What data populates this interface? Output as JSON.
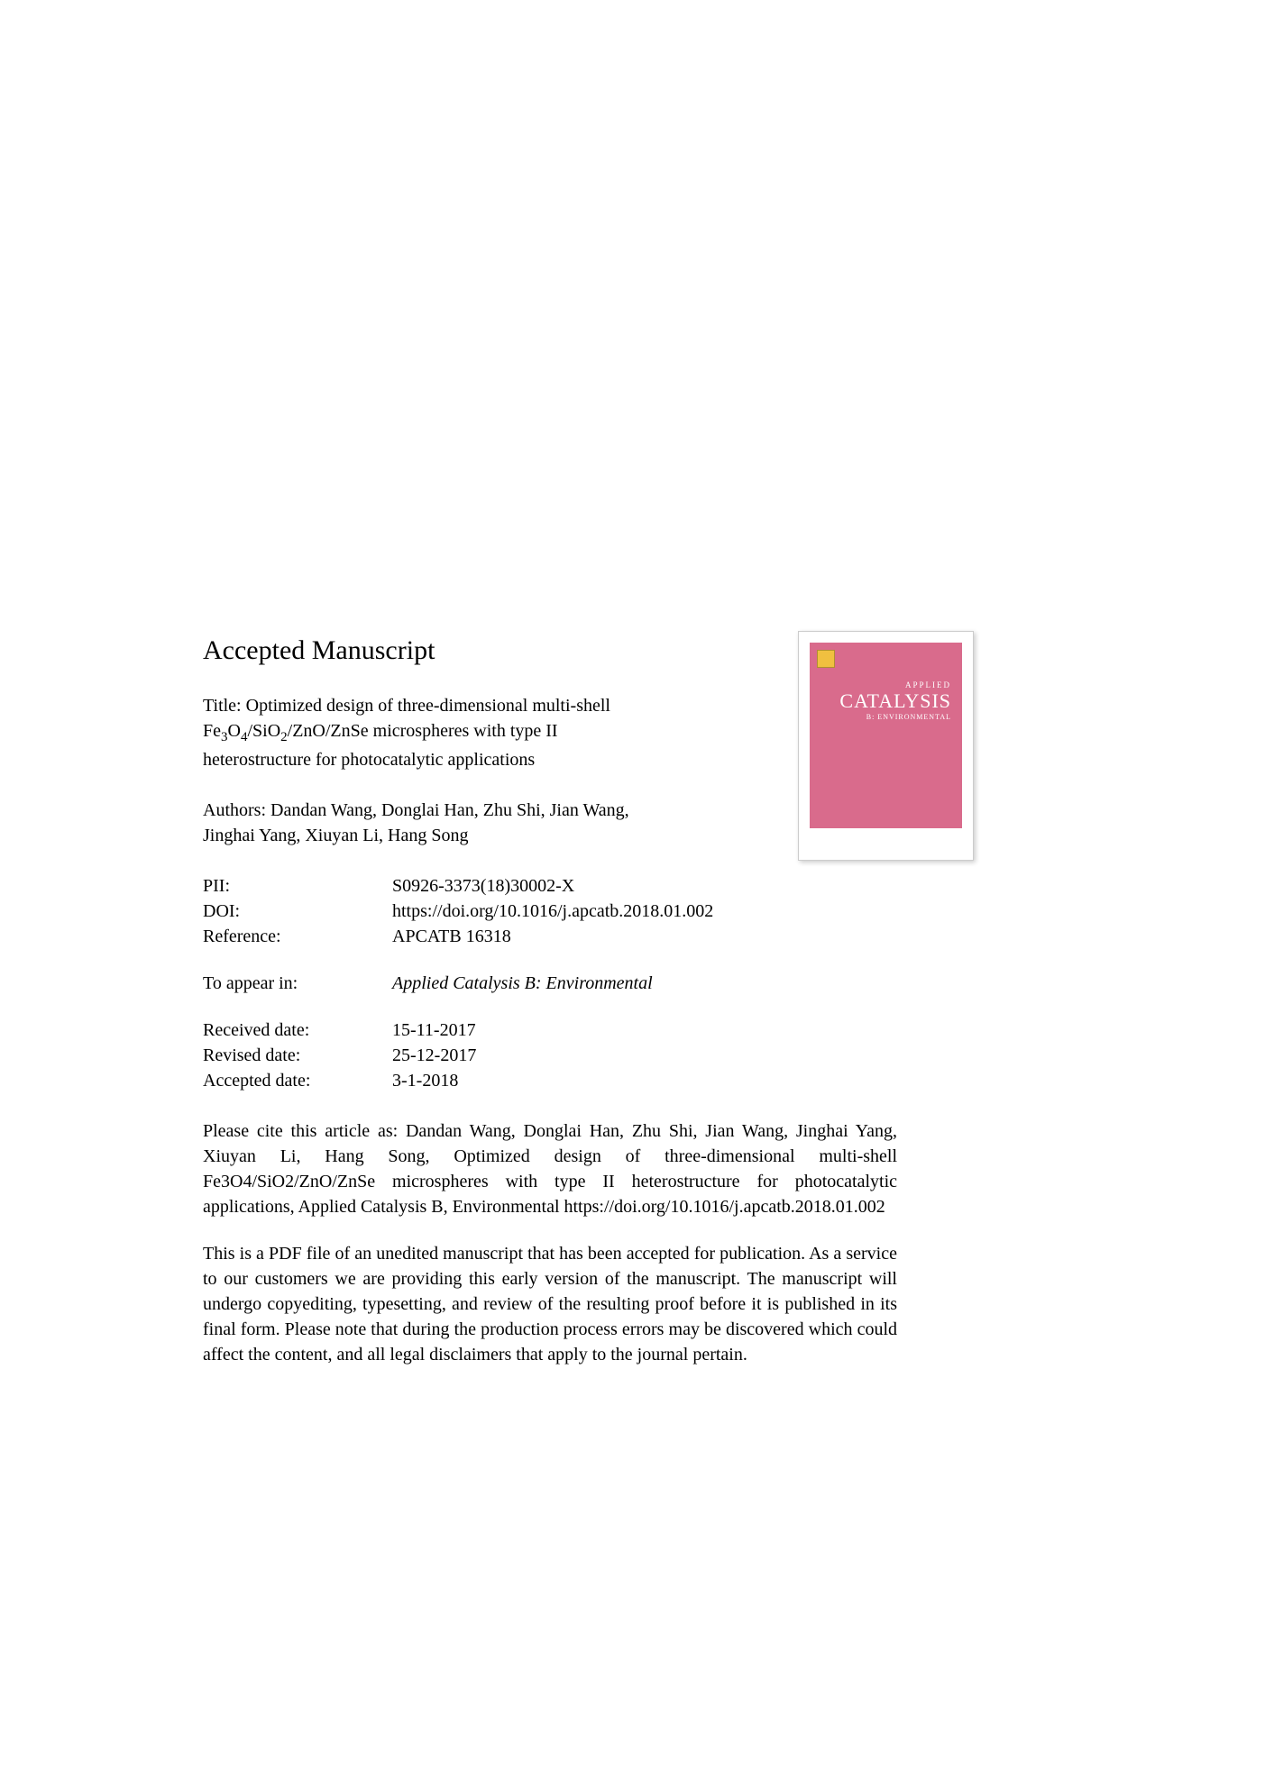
{
  "heading": "Accepted Manuscript",
  "title_prefix": "Title: ",
  "title_line1": "Optimized design of three-dimensional multi-shell",
  "title_line2a": "Fe",
  "title_line2b": "O",
  "title_line2c": "/SiO",
  "title_line2d": "/ZnO/ZnSe microspheres with type II",
  "title_line3": "heterostructure for photocatalytic applications",
  "authors_prefix": "Authors: ",
  "authors_line1": "Dandan Wang, Donglai Han, Zhu Shi, Jian Wang,",
  "authors_line2": "Jinghai Yang, Xiuyan Li, Hang Song",
  "metadata": {
    "pii_label": "PII:",
    "pii_value": "S0926-3373(18)30002-X",
    "doi_label": "DOI:",
    "doi_value": "https://doi.org/10.1016/j.apcatb.2018.01.002",
    "reference_label": "Reference:",
    "reference_value": "APCATB 16318"
  },
  "appear": {
    "label": "To appear in:",
    "value": "Applied Catalysis B: Environmental"
  },
  "dates": {
    "received_label": "Received date:",
    "received_value": "15-11-2017",
    "revised_label": "Revised date:",
    "revised_value": "25-12-2017",
    "accepted_label": "Accepted date:",
    "accepted_value": "3-1-2018"
  },
  "citation": "Please cite this article as: Dandan Wang, Donglai Han, Zhu Shi, Jian Wang, Jinghai Yang, Xiuyan Li, Hang Song, Optimized design of three-dimensional multi-shell Fe3O4/SiO2/ZnO/ZnSe microspheres with type II heterostructure for photocatalytic applications, Applied Catalysis B, Environmental https://doi.org/10.1016/j.apcatb.2018.01.002",
  "disclaimer": "This is a PDF file of an unedited manuscript that has been accepted for publication. As a service to our customers we are providing this early version of the manuscript. The manuscript will undergo copyediting, typesetting, and review of the resulting proof before it is published in its final form. Please note that during the production process errors may be discovered which could affect the content, and all legal disclaimers that apply to the journal pertain.",
  "cover": {
    "applied": "APPLIED",
    "title": "CATALYSIS",
    "subtitle": "B: ENVIRONMENTAL",
    "background_color": "#d96b8c",
    "text_color": "#ffffff"
  },
  "subscripts": {
    "three": "3",
    "four": "4",
    "two": "2"
  }
}
